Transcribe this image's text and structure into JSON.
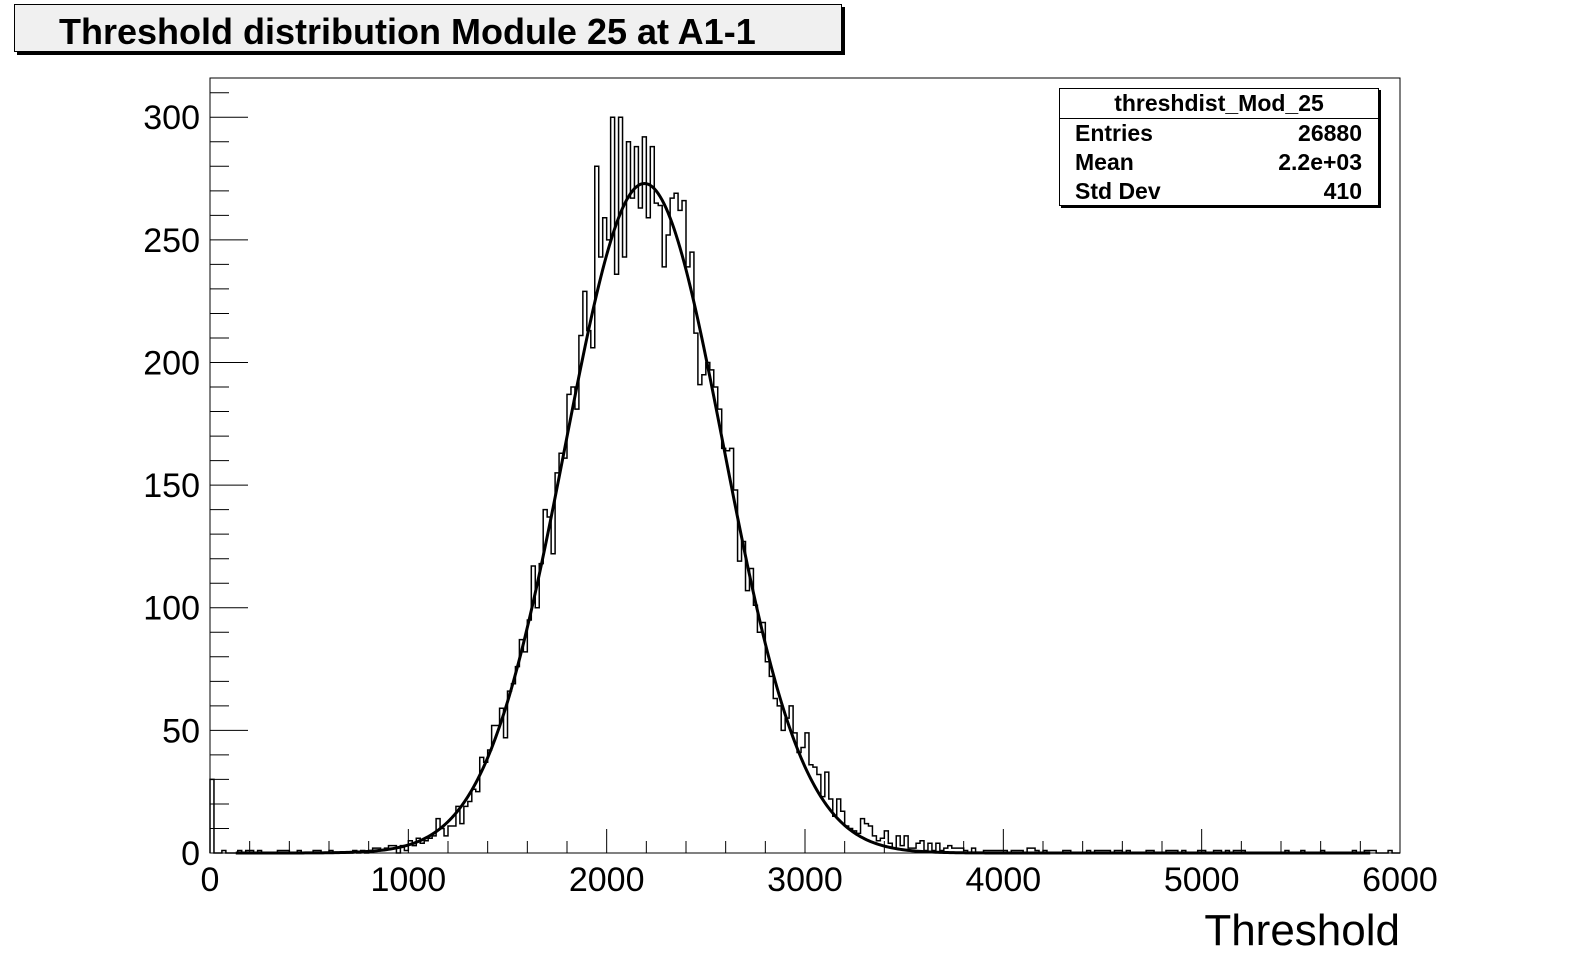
{
  "title": "Threshold distribution Module 25 at A1-1",
  "stats": {
    "name": "threshdist_Mod_25",
    "rows": [
      {
        "label": "Entries",
        "value": "26880"
      },
      {
        "label": "Mean",
        "value": "2.2e+03"
      },
      {
        "label": "Std Dev",
        "value": "410"
      }
    ]
  },
  "chart_data": {
    "type": "histogram",
    "title": "Threshold distribution Module 25 at A1-1",
    "xlabel": "Threshold",
    "ylabel": "",
    "xlim": [
      0,
      6000
    ],
    "ylim": [
      0,
      316
    ],
    "x_ticks": [
      "0",
      "1000",
      "2000",
      "3000",
      "4000",
      "5000",
      "6000"
    ],
    "y_ticks": [
      "0",
      "50",
      "100",
      "150",
      "200",
      "250",
      "300"
    ],
    "grid": false,
    "histogram": {
      "bin_width": 20,
      "x_start": 0,
      "x_end": 6000,
      "peak_values": [
        {
          "x": 2020,
          "y": 300
        },
        {
          "x": 2060,
          "y": 300
        },
        {
          "x": 2100,
          "y": 290
        },
        {
          "x": 1940,
          "y": 280
        }
      ],
      "envelope": [
        {
          "x": 1000,
          "y": 1
        },
        {
          "x": 1200,
          "y": 6
        },
        {
          "x": 1400,
          "y": 30
        },
        {
          "x": 1600,
          "y": 95
        },
        {
          "x": 1800,
          "y": 185
        },
        {
          "x": 2000,
          "y": 270
        },
        {
          "x": 2200,
          "y": 270
        },
        {
          "x": 2400,
          "y": 205
        },
        {
          "x": 2600,
          "y": 130
        },
        {
          "x": 2800,
          "y": 70
        },
        {
          "x": 3000,
          "y": 35
        },
        {
          "x": 3200,
          "y": 15
        },
        {
          "x": 3400,
          "y": 7
        },
        {
          "x": 3600,
          "y": 3
        },
        {
          "x": 3800,
          "y": 1
        }
      ]
    },
    "fit": {
      "type": "gaussian",
      "amplitude": 273,
      "mean": 2190,
      "sigma": 400,
      "x_range": [
        130,
        5850
      ]
    },
    "legend": {
      "name": "threshdist_Mod_25",
      "entries": "26880",
      "mean": "2.2e+03",
      "std_dev": "410",
      "position": "top-right"
    }
  }
}
